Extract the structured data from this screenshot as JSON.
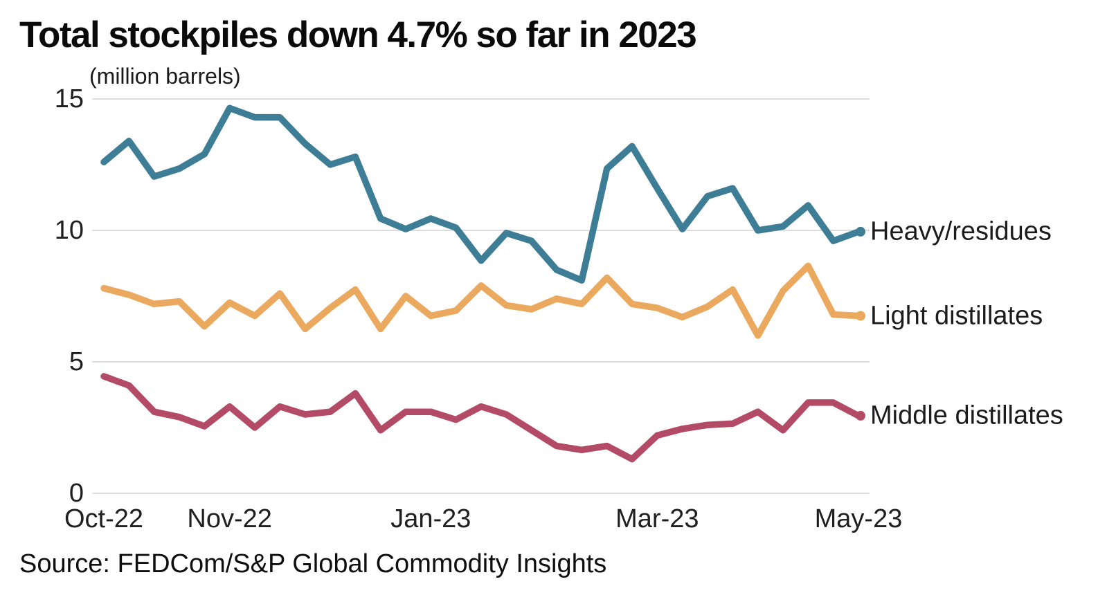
{
  "header": {
    "title": "Total stockpiles down 4.7% so far in 2023",
    "subtitle": "(million barrels)"
  },
  "source": {
    "text": "Source: FEDCom/S&P Global Commodity Insights"
  },
  "colors": {
    "background": "#FFFFFF",
    "gridline": "#DDDDDD",
    "tick_text": "#1F1F1F",
    "title_text": "#0A0A0A"
  },
  "chart_data": {
    "type": "line",
    "title": "Total stockpiles down 4.7% so far in 2023",
    "subtitle": "(million barrels)",
    "xlabel": "",
    "ylabel": "million barrels",
    "ylim": [
      0,
      15
    ],
    "yticks": [
      0,
      5,
      10,
      15
    ],
    "grid": "horizontal",
    "gridline_color": "#DDDDDD",
    "legend_position": "right-of-line-ends",
    "n_points": 31,
    "x_unit": "weekly",
    "x_tick_labels": [
      {
        "label": "Oct-22",
        "index": 0
      },
      {
        "label": "Nov-22",
        "index": 5
      },
      {
        "label": "Jan-23",
        "index": 13
      },
      {
        "label": "Mar-23",
        "index": 22
      },
      {
        "label": "May-23",
        "index": 30
      }
    ],
    "series": [
      {
        "name": "heavy-residues",
        "label": "Heavy/residues",
        "color": "#3E7D96",
        "values": [
          12.6,
          13.4,
          12.05,
          12.35,
          12.9,
          14.65,
          14.3,
          14.3,
          13.3,
          12.5,
          12.8,
          10.45,
          10.05,
          10.45,
          10.1,
          8.85,
          9.9,
          9.6,
          8.5,
          8.1,
          12.35,
          13.2,
          11.6,
          10.05,
          11.3,
          11.6,
          10.0,
          10.15,
          10.95,
          9.6,
          9.95
        ]
      },
      {
        "name": "light-distillates",
        "label": "Light distillates",
        "color": "#EAA95E",
        "values": [
          7.8,
          7.55,
          7.2,
          7.3,
          6.35,
          7.25,
          6.75,
          7.6,
          6.25,
          7.05,
          7.75,
          6.25,
          7.5,
          6.75,
          6.95,
          7.9,
          7.15,
          7.0,
          7.4,
          7.2,
          8.2,
          7.2,
          7.05,
          6.7,
          7.1,
          7.75,
          6.0,
          7.7,
          8.65,
          6.8,
          6.75
        ]
      },
      {
        "name": "middle-distillates",
        "label": "Middle distillates",
        "color": "#B34B67",
        "values": [
          4.45,
          4.1,
          3.1,
          2.9,
          2.55,
          3.3,
          2.5,
          3.3,
          3.0,
          3.1,
          3.8,
          2.4,
          3.1,
          3.1,
          2.8,
          3.3,
          3.0,
          2.4,
          1.8,
          1.65,
          1.8,
          1.3,
          2.2,
          2.45,
          2.6,
          2.65,
          3.1,
          2.4,
          3.45,
          3.45,
          2.95
        ]
      }
    ]
  }
}
